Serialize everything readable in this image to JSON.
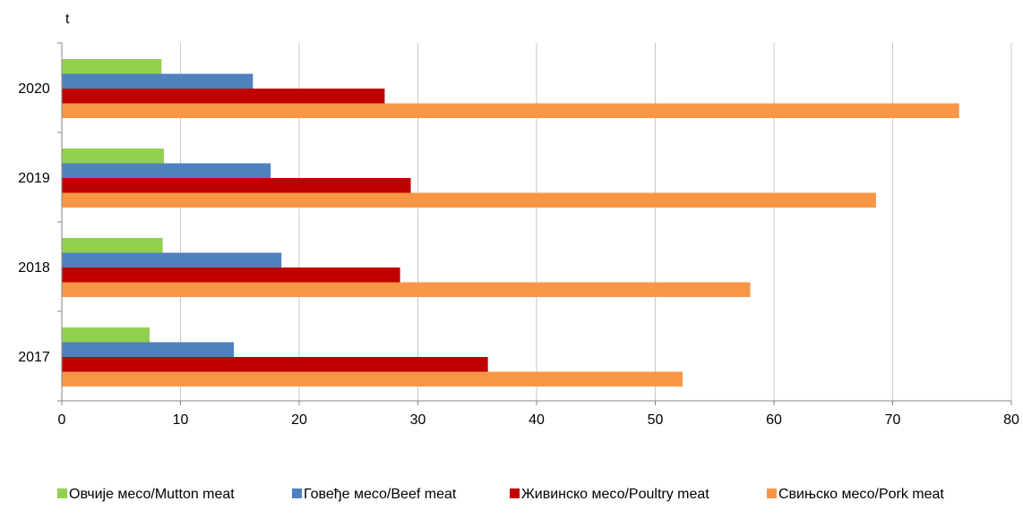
{
  "chart_data": {
    "type": "bar",
    "orientation": "horizontal",
    "unit_label": "t",
    "categories": [
      "2017",
      "2018",
      "2019",
      "2020"
    ],
    "series": [
      {
        "name": "Овчије месо/Mutton meat",
        "color": "#92d050",
        "values": [
          7.4,
          8.5,
          8.6,
          8.4
        ]
      },
      {
        "name": "Говеђе месо/Beef meat",
        "color": "#4f81bd",
        "values": [
          14.5,
          18.5,
          17.6,
          16.1
        ]
      },
      {
        "name": "Живинско месо/Poultry meat",
        "color": "#c00000",
        "values": [
          35.9,
          28.5,
          29.4,
          27.2
        ]
      },
      {
        "name": "Свињско месо/Pork meat",
        "color": "#f79646",
        "values": [
          52.3,
          58.0,
          68.6,
          75.6
        ]
      }
    ],
    "xlim": [
      0,
      80
    ],
    "xticks": [
      "0",
      "10",
      "20",
      "30",
      "40",
      "50",
      "60",
      "70",
      "80"
    ],
    "grid": true,
    "legend_position": "bottom"
  }
}
